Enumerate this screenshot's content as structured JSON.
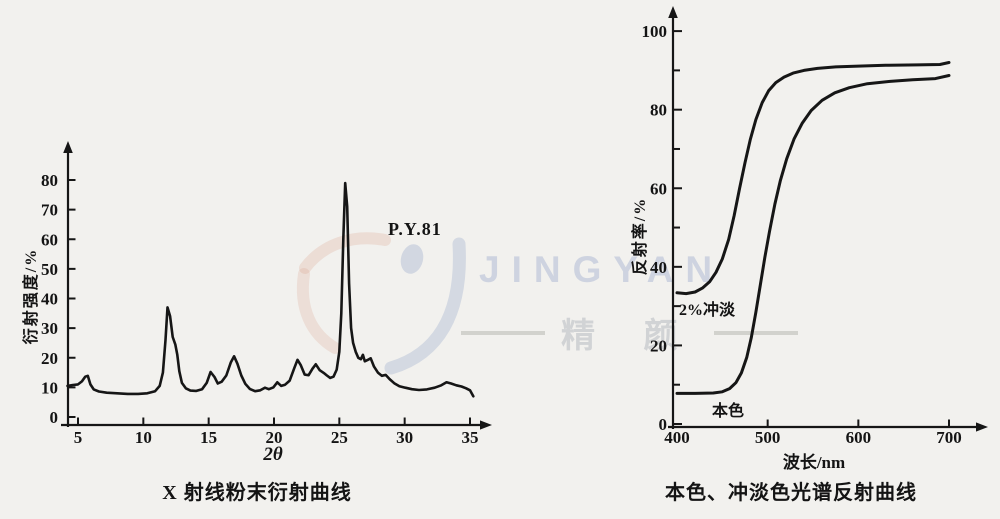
{
  "colors": {
    "ink": "#161616",
    "background": "#f2f1ee",
    "watermark_blue": "#8fa2c8",
    "watermark_pink": "#d8967f"
  },
  "watermark": {
    "brand_latin": "JINGYAN",
    "brand_cjk": "精 颜"
  },
  "chart_data": [
    {
      "type": "line",
      "title": "X 射线粉末衍射曲线",
      "xlabel": "2θ",
      "ylabel": "衍射强度/%",
      "annotation": "P.Y.81",
      "xlim": [
        4.2,
        36
      ],
      "ylim": [
        0,
        85
      ],
      "xticks": [
        5,
        10,
        15,
        20,
        25,
        30,
        35
      ],
      "yticks": [
        0,
        10,
        20,
        30,
        40,
        50,
        60,
        70,
        80
      ],
      "grid": false,
      "series": [
        {
          "name": "P.Y.81",
          "points": [
            [
              4.2,
              10.5
            ],
            [
              4.6,
              10.8
            ],
            [
              5.0,
              11.0
            ],
            [
              5.3,
              12.0
            ],
            [
              5.55,
              13.6
            ],
            [
              5.75,
              13.9
            ],
            [
              5.95,
              11.0
            ],
            [
              6.2,
              9.3
            ],
            [
              6.6,
              8.6
            ],
            [
              7.2,
              8.2
            ],
            [
              8.0,
              8.0
            ],
            [
              8.8,
              7.8
            ],
            [
              9.6,
              7.8
            ],
            [
              10.3,
              8.0
            ],
            [
              10.9,
              8.7
            ],
            [
              11.25,
              10.5
            ],
            [
              11.5,
              15.0
            ],
            [
              11.7,
              26.0
            ],
            [
              11.85,
              37.0
            ],
            [
              12.05,
              34.0
            ],
            [
              12.25,
              27.0
            ],
            [
              12.45,
              24.5
            ],
            [
              12.6,
              21.0
            ],
            [
              12.75,
              15.5
            ],
            [
              12.95,
              11.5
            ],
            [
              13.25,
              9.7
            ],
            [
              13.6,
              8.9
            ],
            [
              14.05,
              8.8
            ],
            [
              14.5,
              9.4
            ],
            [
              14.85,
              11.5
            ],
            [
              15.15,
              15.2
            ],
            [
              15.45,
              13.5
            ],
            [
              15.7,
              11.3
            ],
            [
              16.0,
              11.9
            ],
            [
              16.35,
              14.0
            ],
            [
              16.7,
              18.5
            ],
            [
              16.95,
              20.5
            ],
            [
              17.2,
              18.0
            ],
            [
              17.5,
              14.0
            ],
            [
              17.8,
              11.2
            ],
            [
              18.15,
              9.5
            ],
            [
              18.55,
              8.7
            ],
            [
              18.95,
              9.0
            ],
            [
              19.3,
              9.9
            ],
            [
              19.6,
              9.4
            ],
            [
              19.95,
              10.0
            ],
            [
              20.25,
              11.7
            ],
            [
              20.55,
              10.5
            ],
            [
              20.85,
              10.9
            ],
            [
              21.2,
              12.3
            ],
            [
              21.55,
              16.5
            ],
            [
              21.8,
              19.3
            ],
            [
              22.05,
              17.5
            ],
            [
              22.35,
              14.3
            ],
            [
              22.65,
              14.1
            ],
            [
              22.95,
              16.3
            ],
            [
              23.2,
              17.8
            ],
            [
              23.5,
              15.8
            ],
            [
              23.8,
              14.9
            ],
            [
              24.05,
              14.0
            ],
            [
              24.3,
              13.2
            ],
            [
              24.55,
              13.6
            ],
            [
              24.8,
              16.0
            ],
            [
              25.0,
              22.0
            ],
            [
              25.15,
              35.0
            ],
            [
              25.3,
              60.0
            ],
            [
              25.45,
              79.0
            ],
            [
              25.6,
              71.0
            ],
            [
              25.75,
              45.0
            ],
            [
              25.9,
              30.0
            ],
            [
              26.05,
              25.0
            ],
            [
              26.25,
              22.0
            ],
            [
              26.45,
              20.0
            ],
            [
              26.65,
              19.5
            ],
            [
              26.8,
              21.0
            ],
            [
              26.95,
              18.8
            ],
            [
              27.15,
              19.2
            ],
            [
              27.4,
              19.8
            ],
            [
              27.65,
              17.0
            ],
            [
              27.95,
              15.0
            ],
            [
              28.25,
              13.9
            ],
            [
              28.55,
              14.2
            ],
            [
              28.85,
              12.8
            ],
            [
              29.2,
              11.4
            ],
            [
              29.6,
              10.4
            ],
            [
              30.05,
              9.9
            ],
            [
              30.55,
              9.4
            ],
            [
              31.1,
              9.1
            ],
            [
              31.7,
              9.3
            ],
            [
              32.3,
              9.9
            ],
            [
              32.8,
              10.7
            ],
            [
              33.2,
              11.7
            ],
            [
              33.55,
              11.3
            ],
            [
              33.95,
              10.7
            ],
            [
              34.35,
              10.3
            ],
            [
              34.7,
              9.7
            ],
            [
              35.0,
              9.0
            ],
            [
              35.25,
              7.0
            ]
          ]
        }
      ]
    },
    {
      "type": "line",
      "title": "本色、冲淡色光谱反射曲线",
      "xlabel": "波长/nm",
      "ylabel": "反射率/%",
      "xlim": [
        400,
        730
      ],
      "ylim": [
        0,
        105
      ],
      "xticks": [
        400,
        500,
        600,
        700
      ],
      "yticks": [
        0,
        20,
        40,
        60,
        80,
        100
      ],
      "yticks_minor": [
        10,
        30,
        50,
        70,
        90
      ],
      "grid": false,
      "series": [
        {
          "name": "2%冲淡",
          "points": [
            [
              400,
              33.4
            ],
            [
              410,
              33.2
            ],
            [
              420,
              33.6
            ],
            [
              428,
              34.6
            ],
            [
              436,
              36.2
            ],
            [
              443,
              38.6
            ],
            [
              450,
              42.0
            ],
            [
              457,
              47.0
            ],
            [
              463,
              53.0
            ],
            [
              469,
              60.0
            ],
            [
              475,
              66.5
            ],
            [
              481,
              72.5
            ],
            [
              487,
              77.5
            ],
            [
              494,
              81.8
            ],
            [
              501,
              84.8
            ],
            [
              509,
              86.9
            ],
            [
              518,
              88.3
            ],
            [
              528,
              89.3
            ],
            [
              540,
              90.0
            ],
            [
              555,
              90.5
            ],
            [
              575,
              90.9
            ],
            [
              600,
              91.1
            ],
            [
              630,
              91.3
            ],
            [
              665,
              91.4
            ],
            [
              690,
              91.5
            ],
            [
              700,
              92.0
            ]
          ]
        },
        {
          "name": "本色",
          "points": [
            [
              400,
              7.8
            ],
            [
              420,
              7.8
            ],
            [
              440,
              7.9
            ],
            [
              450,
              8.2
            ],
            [
              458,
              9.0
            ],
            [
              465,
              10.5
            ],
            [
              471,
              13.0
            ],
            [
              477,
              17.0
            ],
            [
              482,
              22.0
            ],
            [
              487,
              28.5
            ],
            [
              492,
              35.5
            ],
            [
              497,
              42.5
            ],
            [
              502,
              49.0
            ],
            [
              508,
              56.0
            ],
            [
              514,
              62.0
            ],
            [
              521,
              67.5
            ],
            [
              529,
              72.5
            ],
            [
              538,
              76.5
            ],
            [
              548,
              79.8
            ],
            [
              560,
              82.4
            ],
            [
              574,
              84.3
            ],
            [
              590,
              85.6
            ],
            [
              610,
              86.6
            ],
            [
              635,
              87.2
            ],
            [
              660,
              87.6
            ],
            [
              685,
              87.9
            ],
            [
              700,
              88.7
            ]
          ]
        }
      ]
    }
  ]
}
